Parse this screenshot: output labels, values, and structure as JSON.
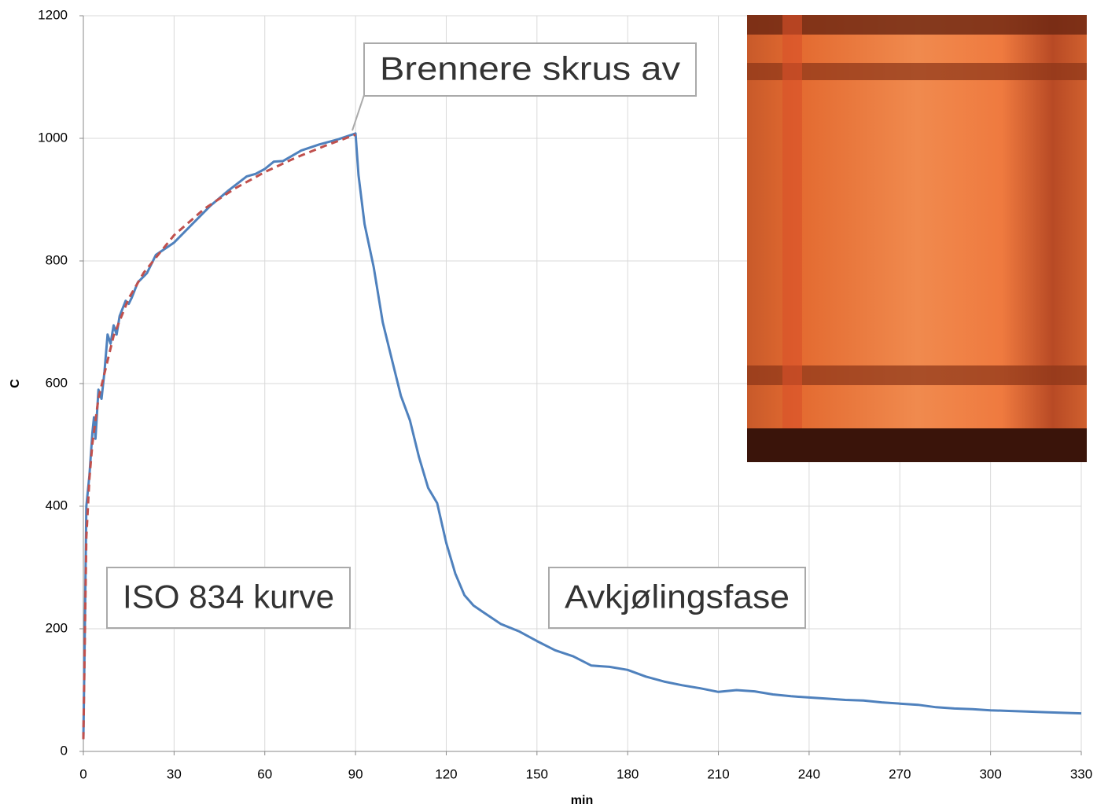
{
  "chart_data": {
    "type": "line",
    "x_label": "min",
    "y_label": "C",
    "xlim": [
      0,
      330
    ],
    "xticks": [
      0,
      30,
      60,
      90,
      120,
      150,
      180,
      210,
      240,
      270,
      300,
      330
    ],
    "ylim": [
      0,
      1200
    ],
    "yticks": [
      0,
      200,
      400,
      600,
      800,
      1000,
      1200
    ],
    "grid": true,
    "series": [
      {
        "color": "#4f81bd",
        "dashed": false,
        "x": [
          0,
          0.5,
          1,
          2,
          3,
          3.5,
          4,
          4.5,
          5,
          6,
          7,
          8,
          9,
          10,
          11,
          12,
          14,
          15,
          16,
          18,
          21,
          24,
          30,
          36,
          42,
          48,
          54,
          57,
          60,
          63,
          66,
          72,
          78,
          84,
          90,
          91,
          93,
          96,
          99,
          102,
          105,
          108,
          111,
          114,
          117,
          120,
          123,
          126,
          129,
          132,
          138,
          144,
          150,
          156,
          162,
          168,
          174,
          180,
          186,
          192,
          198,
          204,
          210,
          216,
          222,
          228,
          234,
          240,
          246,
          252,
          258,
          264,
          270,
          276,
          282,
          288,
          294,
          300,
          306,
          312,
          318,
          324,
          330
        ],
        "values": [
          20,
          200,
          400,
          450,
          520,
          545,
          510,
          550,
          590,
          575,
          620,
          680,
          665,
          695,
          680,
          710,
          735,
          730,
          740,
          765,
          780,
          810,
          830,
          860,
          890,
          915,
          938,
          942,
          950,
          962,
          963,
          980,
          990,
          998,
          1008,
          940,
          860,
          790,
          700,
          640,
          580,
          540,
          480,
          430,
          405,
          340,
          290,
          255,
          238,
          228,
          208,
          196,
          180,
          165,
          155,
          140,
          138,
          133,
          122,
          114,
          108,
          103,
          97,
          100,
          98,
          93,
          90,
          88,
          86,
          84,
          83,
          80,
          78,
          76,
          72,
          70,
          69,
          67,
          66,
          65,
          64,
          63,
          62
        ]
      },
      {
        "color": "#c0504d",
        "dashed": true,
        "x": [
          0,
          1,
          2,
          3,
          5,
          10,
          15,
          20,
          30,
          40,
          50,
          60,
          70,
          80,
          90
        ],
        "values": [
          20,
          349,
          445,
          502,
          576,
          678,
          739,
          781,
          842,
          885,
          918,
          945,
          968,
          988,
          1006
        ]
      }
    ],
    "annotations": [
      {
        "text": "Brennere skrus av"
      },
      {
        "text": "ISO 834 kurve"
      },
      {
        "text": "Avkjølingsfase"
      }
    ]
  }
}
